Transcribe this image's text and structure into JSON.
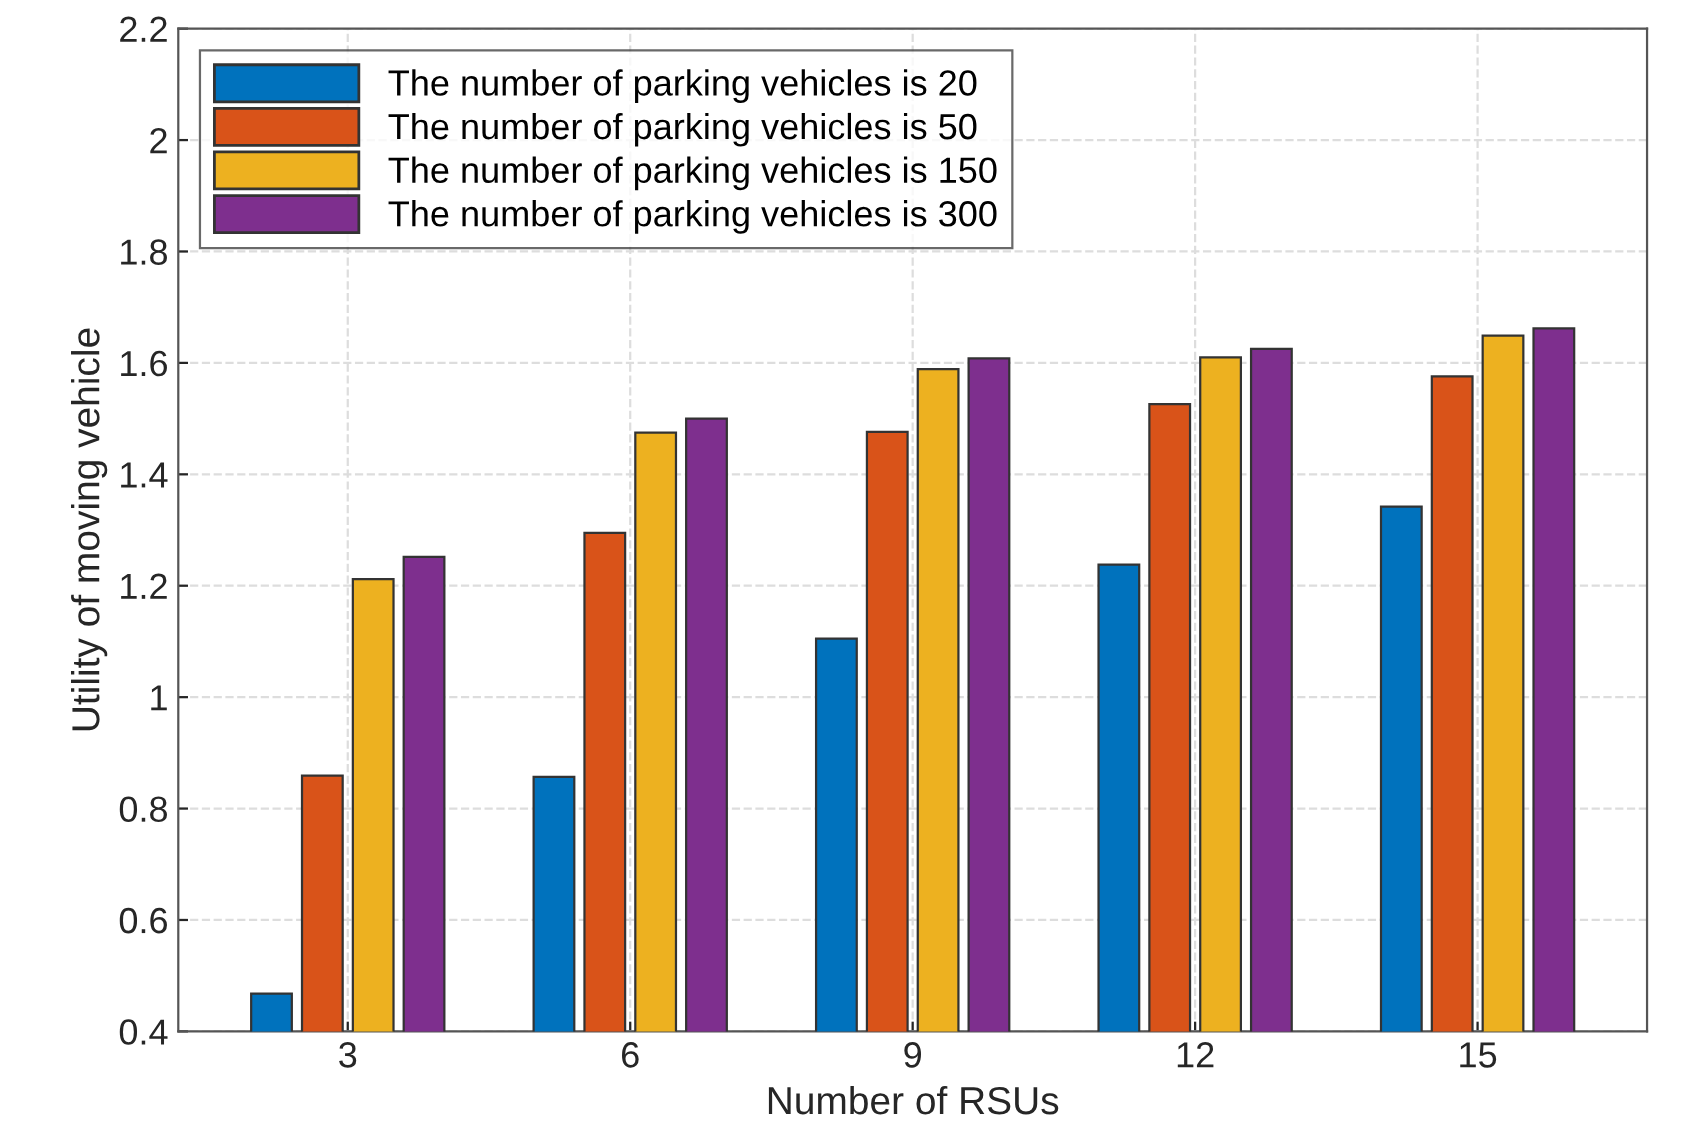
{
  "chart_data": {
    "type": "bar",
    "xlabel": "Number of RSUs",
    "ylabel": "Utility of moving vehicle",
    "categories": [
      "3",
      "6",
      "9",
      "12",
      "15"
    ],
    "series": [
      {
        "name": "The number of parking vehicles is 20",
        "color": "#0072bd",
        "values": [
          0.468,
          0.857,
          1.105,
          1.238,
          1.342
        ]
      },
      {
        "name": "The number of parking vehicles is 50",
        "color": "#d95319",
        "values": [
          0.859,
          1.295,
          1.476,
          1.526,
          1.576
        ]
      },
      {
        "name": "The number of parking vehicles is 150",
        "color": "#edb120",
        "values": [
          1.212,
          1.475,
          1.589,
          1.61,
          1.649
        ]
      },
      {
        "name": "The number of parking vehicles is 300",
        "color": "#7e2f8e",
        "values": [
          1.252,
          1.5,
          1.608,
          1.625,
          1.662
        ]
      }
    ],
    "ylim": [
      0.4,
      2.2
    ],
    "yticks": [
      0.4,
      0.6,
      0.8,
      1,
      1.2,
      1.4,
      1.6,
      1.8,
      2,
      2.2
    ],
    "grid": true,
    "legend": "top left"
  }
}
